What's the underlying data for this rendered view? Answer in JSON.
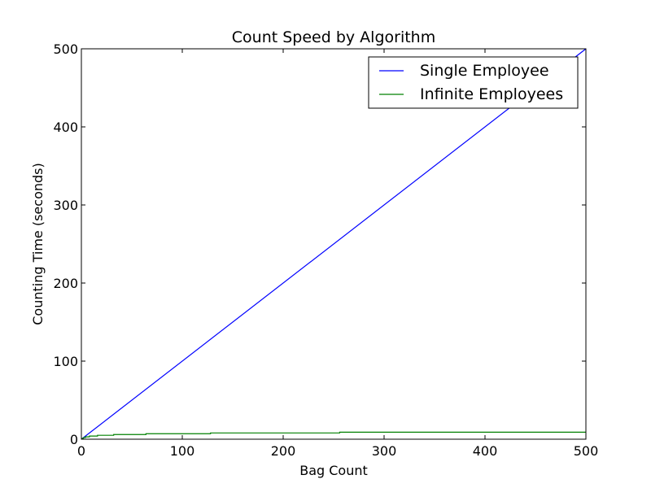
{
  "chart_data": {
    "type": "line",
    "title": "Count Speed by Algorithm",
    "xlabel": "Bag Count",
    "ylabel": "Counting Time (seconds)",
    "xlim": [
      0,
      500
    ],
    "ylim": [
      0,
      500
    ],
    "xticks": [
      0,
      100,
      200,
      300,
      400,
      500
    ],
    "yticks": [
      0,
      100,
      200,
      300,
      400,
      500
    ],
    "grid": false,
    "legend_position": "top-right",
    "series": [
      {
        "name": "Single Employee",
        "color": "#0000ff",
        "step": false,
        "x": [
          0,
          500
        ],
        "y": [
          0,
          500
        ]
      },
      {
        "name": "Infinite Employees",
        "color": "#008000",
        "step": true,
        "x": [
          1,
          2,
          4,
          8,
          16,
          32,
          64,
          128,
          256,
          500
        ],
        "y": [
          1,
          2,
          3,
          4,
          5,
          6,
          7,
          8,
          9,
          9
        ]
      }
    ]
  }
}
